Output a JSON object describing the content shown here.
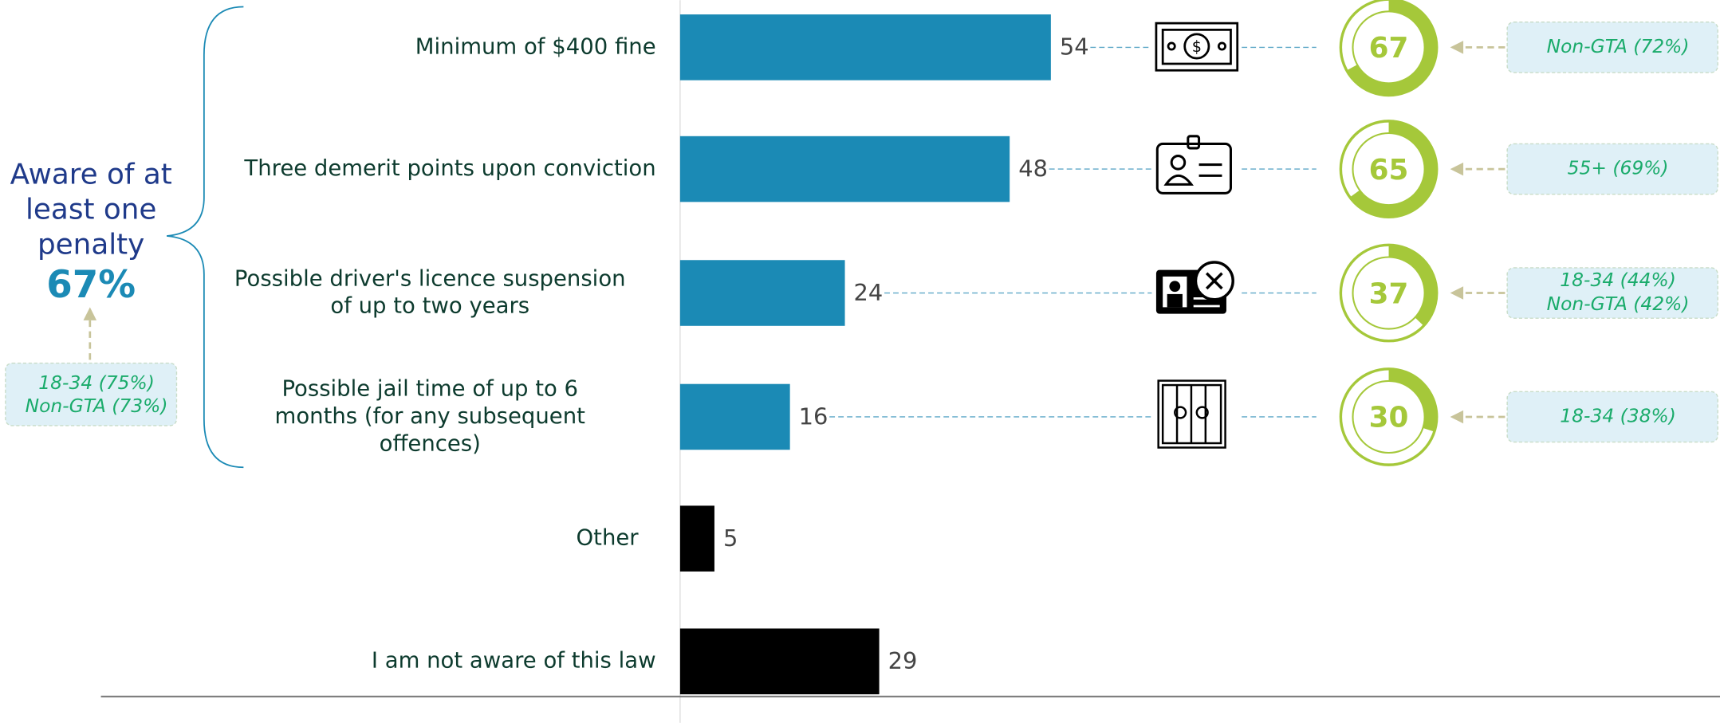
{
  "chart_data": {
    "type": "bar",
    "categories": [
      "Minimum of $400 fine",
      "Three demerit points upon conviction",
      "Possible driver's licence suspension\nof up to two years",
      "Possible jail time of up to 6\nmonths (for any subsequent\noffences)",
      "Other",
      "I am not aware of this law"
    ],
    "values": [
      54,
      48,
      24,
      16,
      5,
      29
    ],
    "colors": [
      "#1b8ab5",
      "#1b8ab5",
      "#1b8ab5",
      "#1b8ab5",
      "#000000",
      "#000000"
    ],
    "xlim": [
      0,
      100
    ],
    "ring_values": [
      67,
      65,
      37,
      30
    ],
    "ring_color": "#a5c83a",
    "callouts": [
      [
        "Non-GTA (72%)"
      ],
      [
        "55+ (69%)"
      ],
      [
        "18-34 (44%)",
        "Non-GTA (42%)"
      ],
      [
        "18-34 (38%)"
      ]
    ],
    "summary": {
      "label": "Aware of at\nleast one\npenalty",
      "value": 67,
      "value_label": "67%",
      "callouts": [
        "18-34 (75%)",
        "Non-GTA (73%)"
      ]
    }
  }
}
